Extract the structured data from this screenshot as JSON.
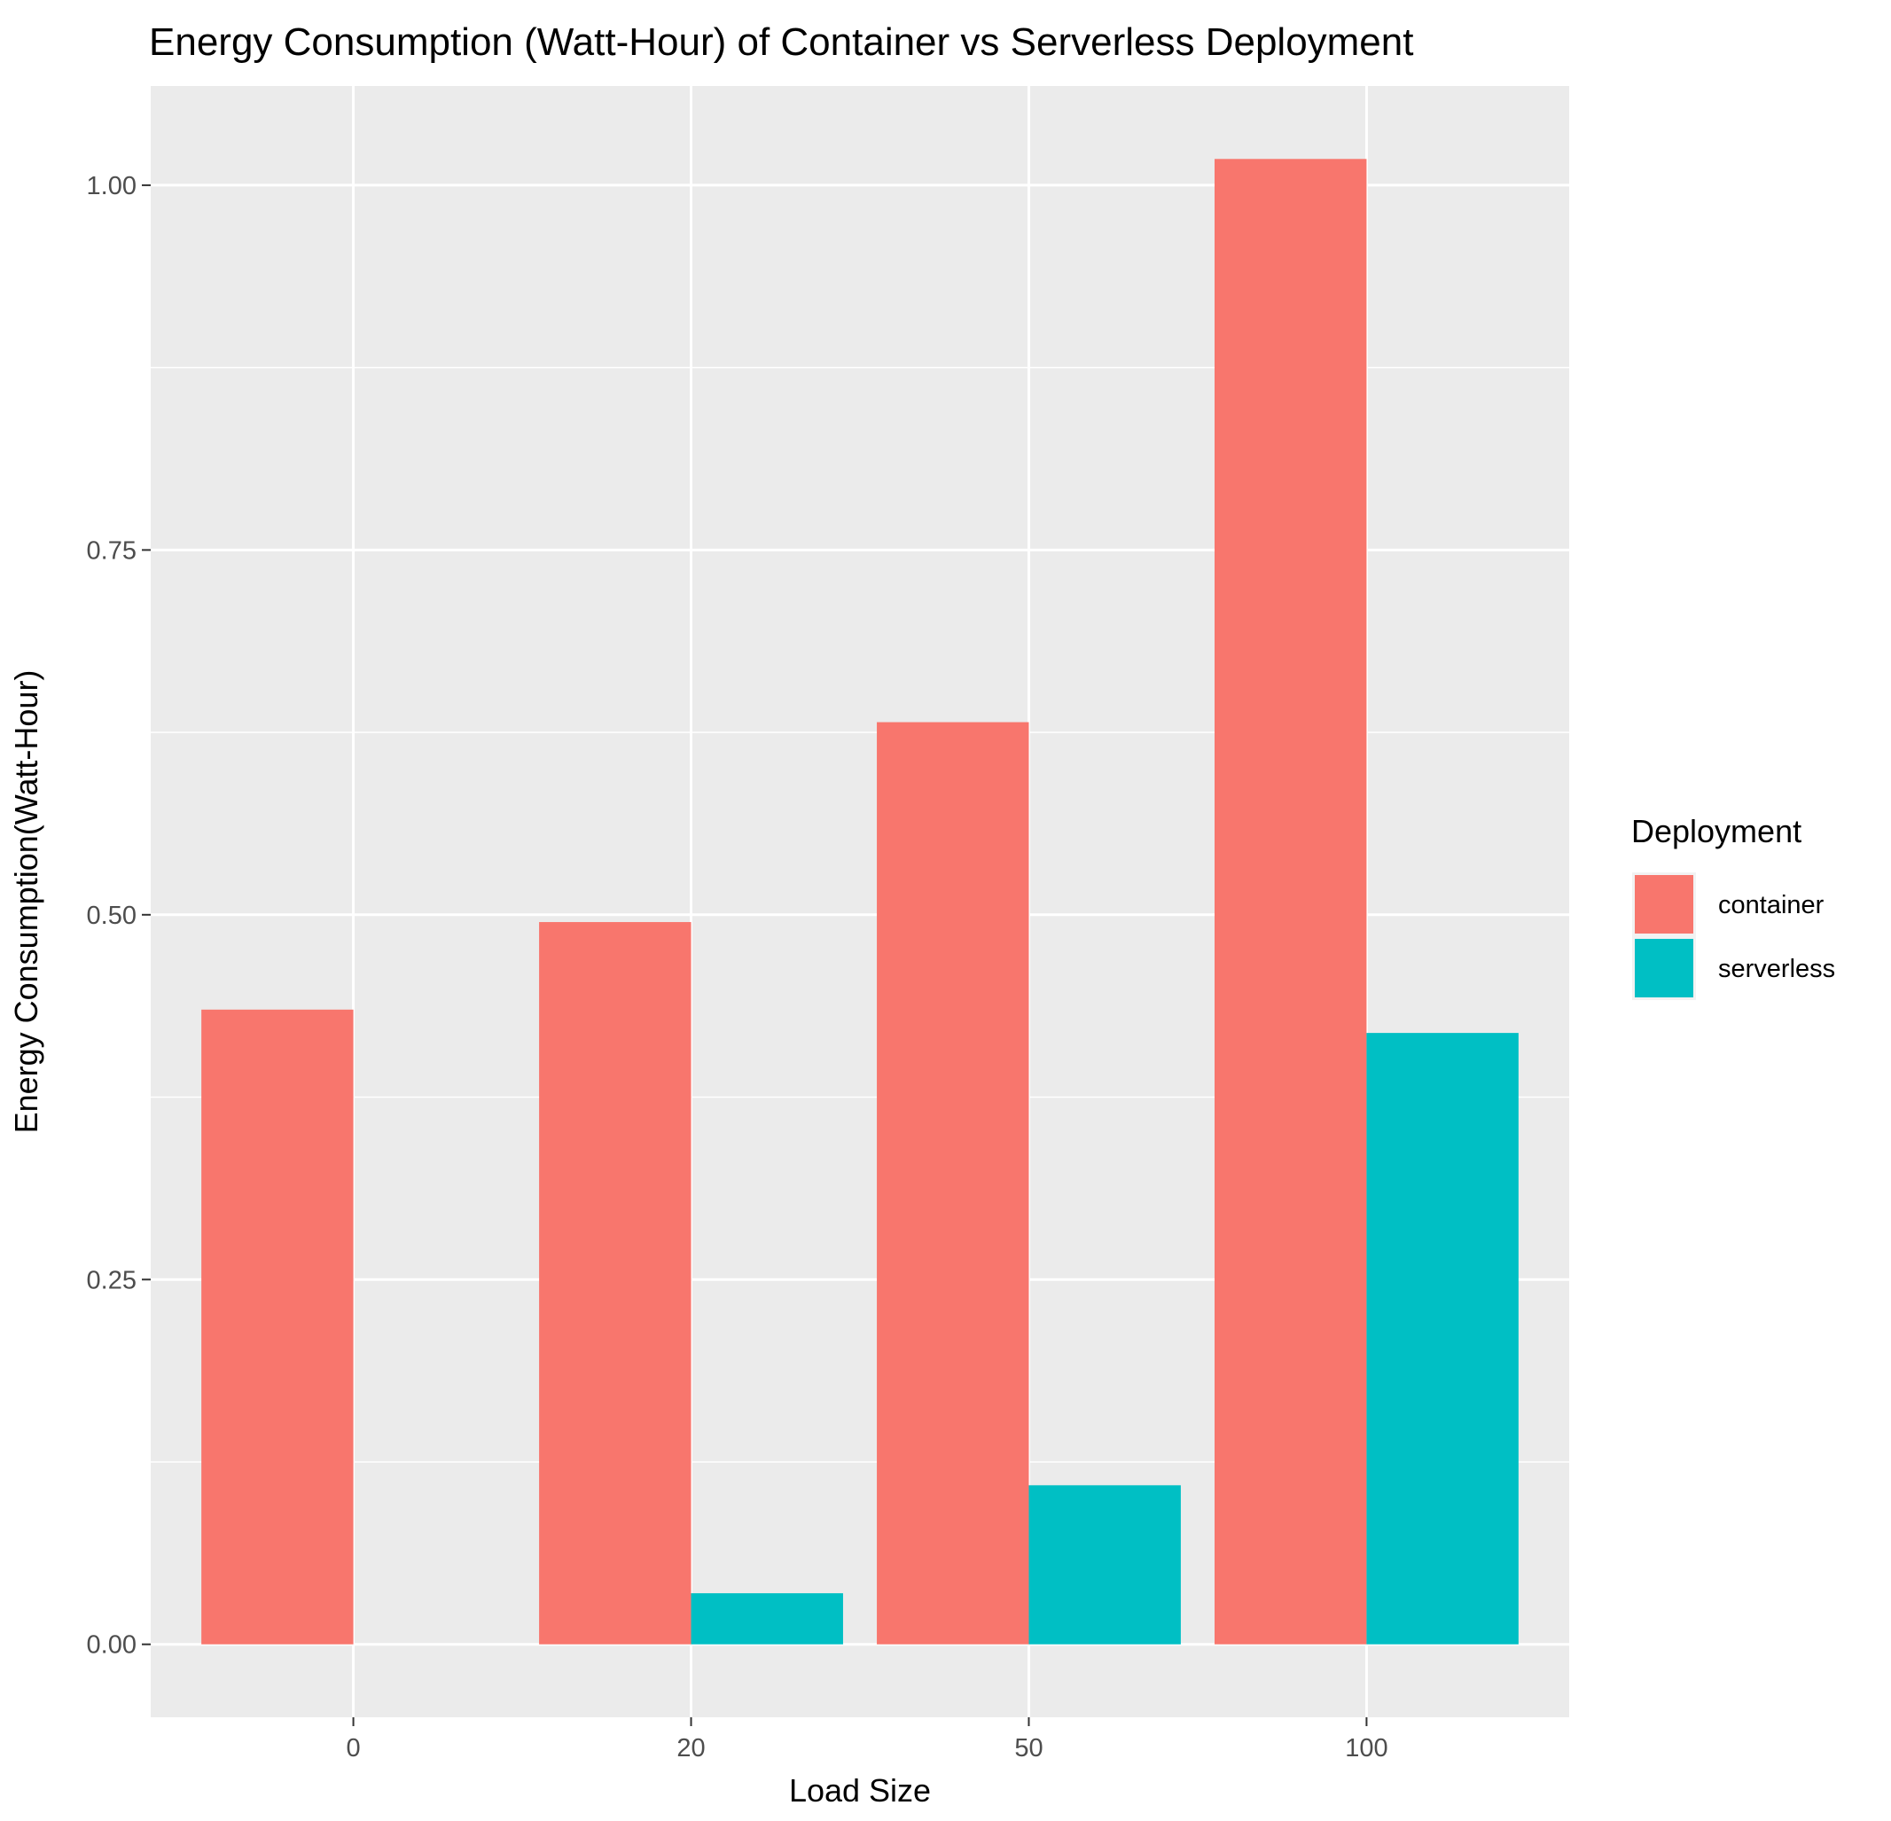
{
  "chart_data": {
    "type": "bar",
    "title": "Energy Consumption (Watt-Hour) of Container vs Serverless Deployment",
    "xlabel": "Load Size",
    "ylabel": "Energy Consumption(Watt-Hour)",
    "categories": [
      "0",
      "20",
      "50",
      "100"
    ],
    "series": [
      {
        "name": "container",
        "color": "#F8766D",
        "values": [
          0.435,
          0.495,
          0.632,
          1.018
        ]
      },
      {
        "name": "serverless",
        "color": "#00BFC4",
        "values": [
          0.0,
          0.035,
          0.109,
          0.419
        ]
      }
    ],
    "ylim": [
      -0.05,
      1.068
    ],
    "yticks": [
      0.0,
      0.25,
      0.5,
      0.75,
      1.0
    ],
    "ytick_labels": [
      "0.00",
      "0.25",
      "0.50",
      "0.75",
      "1.00"
    ],
    "grid": true,
    "legend": {
      "title": "Deployment",
      "position": "right"
    }
  }
}
